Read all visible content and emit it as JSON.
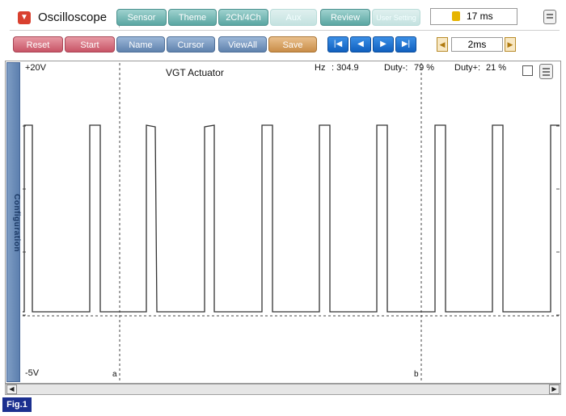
{
  "app": {
    "title": "Oscilloscope"
  },
  "tabs": [
    "Sensor",
    "Theme",
    "2Ch/4Ch",
    "Aux",
    "Review",
    "User Setting"
  ],
  "time_display": "17 ms",
  "toolbar": {
    "reset": "Reset",
    "start": "Start",
    "name": "Name",
    "cursor": "Cursor",
    "viewall": "ViewAll",
    "save": "Save"
  },
  "nav_buttons": {
    "first": "|◀",
    "prev": "◀",
    "next": "▶",
    "last": "▶|"
  },
  "timebase": "2ms",
  "side_tab": "Configuration",
  "scope": {
    "title": "VGT Actuator",
    "y_max_label": "+20V",
    "y_min_label": "-5V",
    "hz_label": "Hz",
    "hz_value": ": 304.9",
    "duty_minus_label": "Duty-:",
    "duty_minus_value": "79 %",
    "duty_plus_label": "Duty+:",
    "duty_plus_value": "21 %",
    "cursor_a": "a",
    "cursor_b": "b"
  },
  "figure_label": "Fig.1",
  "colors": {
    "trace": "#333333",
    "grid": "#555555"
  }
}
